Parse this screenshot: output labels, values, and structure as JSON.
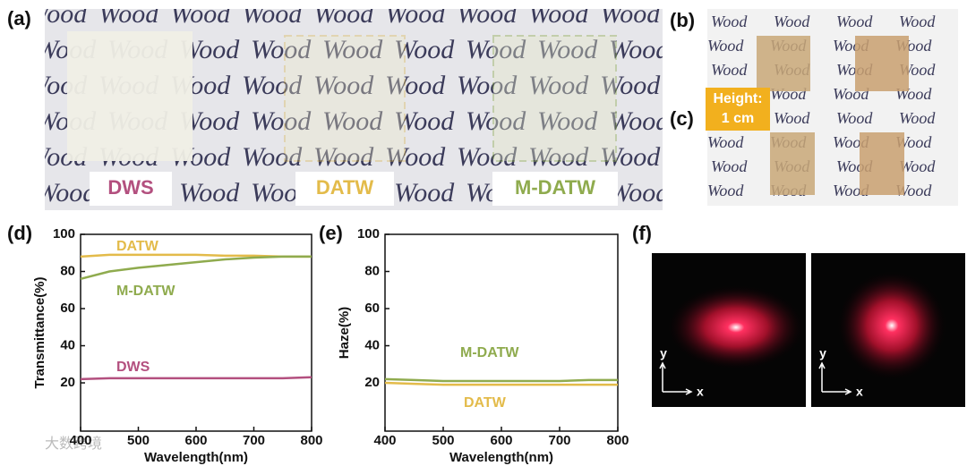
{
  "figure": {
    "panel_labels": [
      "(a)",
      "(b)",
      "(c)",
      "(d)",
      "(e)",
      "(f)"
    ],
    "background_word": "Wood",
    "sample_labels": [
      "DWS",
      "DATW",
      "M-DATW"
    ],
    "height_label": [
      "Height:",
      "1 cm"
    ],
    "axis_letters": [
      "x",
      "y"
    ],
    "watermark": "大数跨境"
  },
  "chart_data": [
    {
      "type": "line",
      "xlabel": "Wavelength(nm)",
      "ylabel": "Transmittance(%)",
      "x": [
        400,
        450,
        500,
        550,
        600,
        650,
        700,
        750,
        800
      ],
      "xlim": [
        400,
        800
      ],
      "xticks": [
        400,
        500,
        600,
        700,
        800
      ],
      "ylim": [
        -6,
        100
      ],
      "yticks": [
        20,
        40,
        60,
        80,
        100
      ],
      "series": [
        {
          "name": "DATW",
          "color": "#e3bb4a",
          "values": [
            88,
            89,
            89,
            89,
            89,
            88.5,
            88.5,
            88,
            88
          ]
        },
        {
          "name": "M-DATW",
          "color": "#8fab4e",
          "values": [
            76,
            80,
            82,
            83.5,
            85,
            86.5,
            87.5,
            88,
            88
          ]
        },
        {
          "name": "DWS",
          "color": "#b3507f",
          "values": [
            22,
            22.5,
            22.5,
            22.5,
            22.5,
            22.5,
            22.5,
            22.5,
            23
          ]
        }
      ]
    },
    {
      "type": "line",
      "xlabel": "Wavelength(nm)",
      "ylabel": "Haze(%)",
      "x": [
        400,
        450,
        500,
        550,
        600,
        650,
        700,
        750,
        800
      ],
      "xlim": [
        400,
        800
      ],
      "xticks": [
        400,
        500,
        600,
        700,
        800
      ],
      "ylim": [
        -6,
        100
      ],
      "yticks": [
        20,
        40,
        60,
        80,
        100
      ],
      "series": [
        {
          "name": "M-DATW",
          "color": "#8fab4e",
          "values": [
            22,
            21.5,
            21,
            21,
            21,
            21,
            21,
            21.5,
            21.5
          ]
        },
        {
          "name": "DATW",
          "color": "#e3bb4a",
          "values": [
            20,
            19.5,
            19,
            19,
            19,
            19,
            19,
            19,
            19
          ]
        }
      ]
    }
  ]
}
